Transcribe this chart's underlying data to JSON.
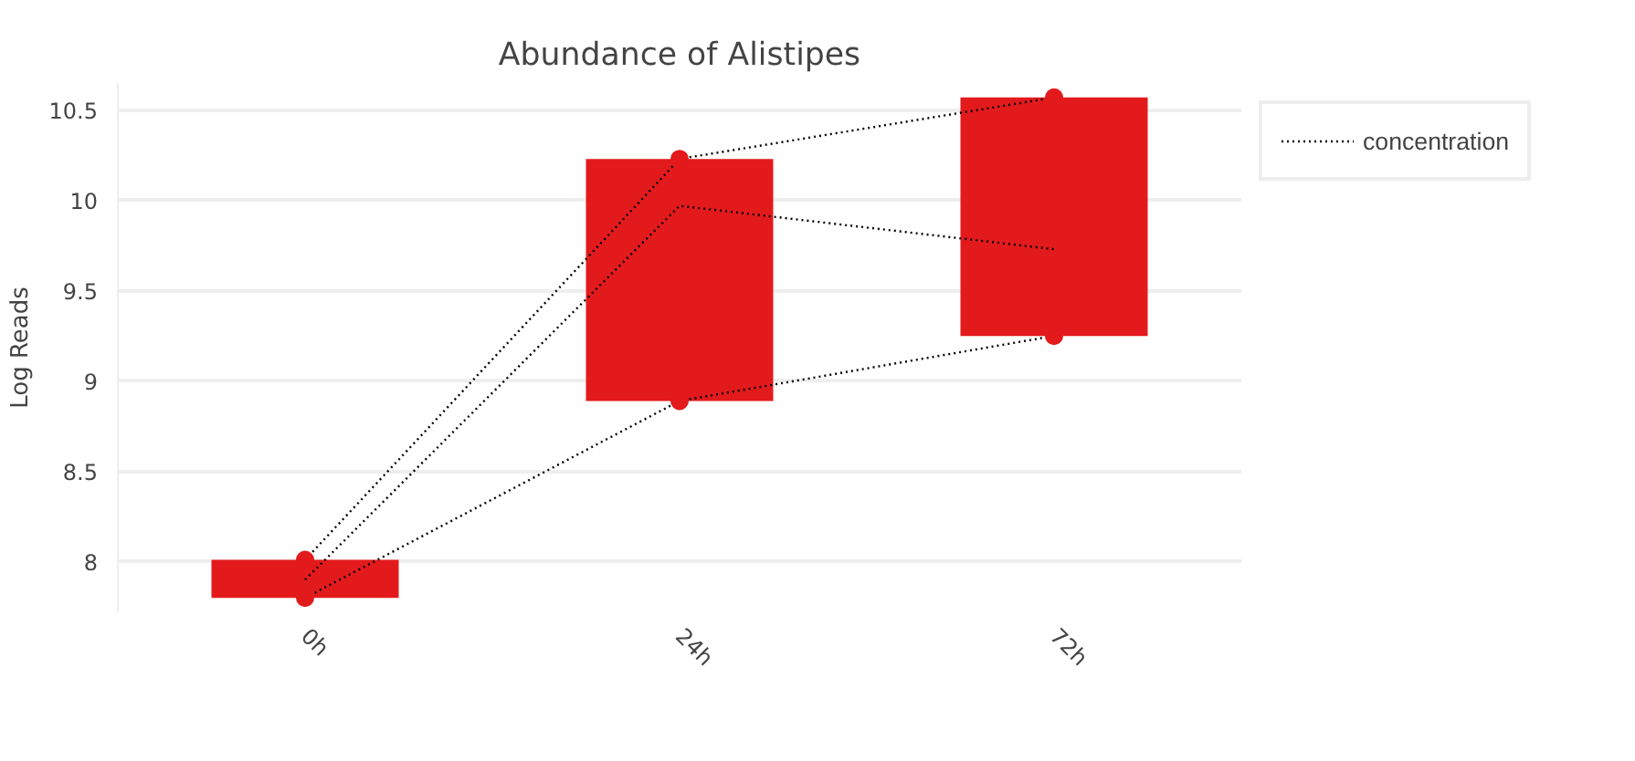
{
  "chart_data": {
    "type": "bar",
    "title": "Abundance of Alistipes",
    "ylabel": "Log Reads",
    "categories": [
      "0h",
      "24h",
      "72h"
    ],
    "ylim": [
      7.72,
      10.65
    ],
    "yticks": [
      8,
      8.5,
      9,
      9.5,
      10,
      10.5
    ],
    "grid": "y",
    "legend": "top right",
    "series": [
      {
        "color": "#e31a1c",
        "base": [
          7.8,
          8.89,
          9.25
        ],
        "values": [
          0.21,
          1.34,
          1.32
        ]
      },
      {
        "type": "line",
        "name": "concentration",
        "color": "#000000",
        "line_style": "dotted",
        "marker": "none",
        "values": [
          7.9,
          9.97,
          9.73
        ]
      },
      {
        "type": "line",
        "color": "#000000",
        "line_style": "dotted",
        "marker": "none",
        "values": [
          7.8,
          8.89,
          9.25
        ]
      },
      {
        "type": "line",
        "color": "#000000",
        "line_style": "dotted",
        "marker": "none",
        "values": [
          8.01,
          10.23,
          10.57
        ]
      },
      {
        "type": "scatter",
        "color": "#e31a1c",
        "marker": "circle",
        "x": [
          "0h",
          "24h",
          "72h"
        ],
        "values": [
          7.8,
          8.89,
          9.25
        ]
      },
      {
        "type": "scatter",
        "color": "#e31a1c",
        "marker": "circle",
        "x": [
          "0h",
          "24h",
          "72h"
        ],
        "values": [
          8.01,
          10.23,
          10.57
        ]
      }
    ]
  }
}
